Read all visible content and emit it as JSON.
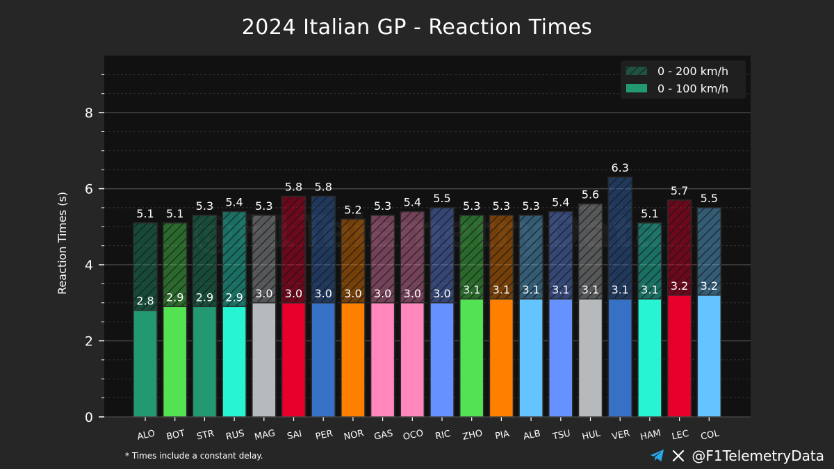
{
  "chart_data": {
    "type": "bar",
    "title": "2024 Italian GP - Reaction Times",
    "xlabel": "",
    "ylabel": "Reaction Times (s)",
    "ylim": [
      0,
      9.5
    ],
    "yticks": [
      0,
      2,
      4,
      6,
      8
    ],
    "grid": true,
    "legend_position": "top-right",
    "categories": [
      "ALO",
      "BOT",
      "STR",
      "RUS",
      "MAG",
      "SAI",
      "PER",
      "NOR",
      "GAS",
      "OCO",
      "RIC",
      "ZHO",
      "PIA",
      "ALB",
      "TSU",
      "HUL",
      "VER",
      "HAM",
      "LEC",
      "COL"
    ],
    "series": [
      {
        "name": "0 - 200 km/h",
        "values": [
          5.1,
          5.1,
          5.3,
          5.4,
          5.3,
          5.8,
          5.8,
          5.2,
          5.3,
          5.4,
          5.5,
          5.3,
          5.3,
          5.3,
          5.4,
          5.6,
          6.3,
          5.1,
          5.7,
          5.5
        ],
        "labels": [
          "5.1",
          "5.1",
          "5.3",
          "5.4",
          "5.3",
          "5.8",
          "5.8",
          "5.2",
          "5.3",
          "5.4",
          "5.5",
          "5.3",
          "5.3",
          "5.3",
          "5.4",
          "5.6",
          "6.3",
          "5.1",
          "5.7",
          "5.5"
        ],
        "style": "hatched"
      },
      {
        "name": "0 - 100 km/h",
        "values": [
          2.8,
          2.9,
          2.9,
          2.9,
          3.0,
          3.0,
          3.0,
          3.0,
          3.0,
          3.0,
          3.0,
          3.1,
          3.1,
          3.1,
          3.1,
          3.1,
          3.1,
          3.1,
          3.2,
          3.2
        ],
        "labels": [
          "2.8",
          "2.9",
          "2.9",
          "2.9",
          "3.0",
          "3.0",
          "3.0",
          "3.0",
          "3.0",
          "3.0",
          "3.0",
          "3.1",
          "3.1",
          "3.1",
          "3.1",
          "3.1",
          "3.1",
          "3.1",
          "3.2",
          "3.2"
        ],
        "style": "solid"
      }
    ],
    "team_colors": [
      "#229971",
      "#52e252",
      "#229971",
      "#27f4d2",
      "#b6babd",
      "#e8002d",
      "#3671c6",
      "#ff8000",
      "#ff87bc",
      "#ff87bc",
      "#6692ff",
      "#52e252",
      "#ff8000",
      "#64c4ff",
      "#6692ff",
      "#b6babd",
      "#3671c6",
      "#27f4d2",
      "#e8002d",
      "#64c4ff"
    ],
    "legend_swatch_color": "#229971",
    "footnote": "* Times include a constant delay.",
    "watermark": "@F1TelemetryData"
  },
  "branding": {
    "handle": "@F1TelemetryData",
    "icons": [
      "telegram-icon",
      "x-logo-icon"
    ]
  }
}
